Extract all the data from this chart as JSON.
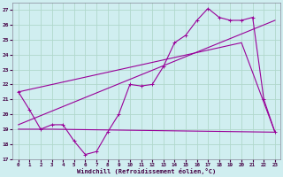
{
  "xlabel": "Windchill (Refroidissement éolien,°C)",
  "bg_color": "#d0eef0",
  "grid_color": "#b0d8cc",
  "line_color": "#990099",
  "xlim": [
    -0.5,
    23.5
  ],
  "ylim": [
    17,
    27.5
  ],
  "xticks": [
    0,
    1,
    2,
    3,
    4,
    5,
    6,
    7,
    8,
    9,
    10,
    11,
    12,
    13,
    14,
    15,
    16,
    17,
    18,
    19,
    20,
    21,
    22,
    23
  ],
  "yticks": [
    17,
    18,
    19,
    20,
    21,
    22,
    23,
    24,
    25,
    26,
    27
  ],
  "series1_x": [
    0,
    1,
    2,
    3,
    4,
    5,
    6,
    7,
    8,
    9,
    10,
    11,
    12,
    13,
    14,
    15,
    16,
    17,
    18,
    19,
    20,
    21,
    22,
    23
  ],
  "series1_y": [
    21.5,
    20.3,
    19.0,
    19.3,
    19.3,
    18.2,
    17.3,
    17.5,
    18.8,
    20.0,
    22.0,
    21.9,
    22.0,
    23.2,
    24.8,
    25.3,
    26.3,
    27.1,
    26.5,
    26.3,
    26.3,
    26.5,
    21.0,
    18.8
  ],
  "series2_x": [
    0,
    3,
    23
  ],
  "series2_y": [
    19.0,
    19.0,
    18.8
  ],
  "series3_x": [
    0,
    23
  ],
  "series3_y": [
    19.3,
    26.3
  ],
  "series4_x": [
    0,
    20,
    23
  ],
  "series4_y": [
    21.5,
    24.8,
    18.8
  ]
}
